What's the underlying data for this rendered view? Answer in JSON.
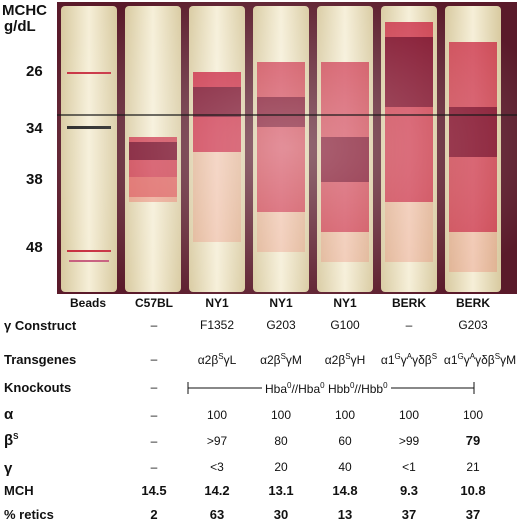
{
  "axis": {
    "title_line1": "MCHC",
    "title_line2": "g/dL",
    "ticks": [
      "26",
      "34",
      "38",
      "48"
    ]
  },
  "lanes": [
    "Beads",
    "C57BL",
    "NY1",
    "NY1",
    "NY1",
    "BERK",
    "BERK"
  ],
  "rows": {
    "gamma_construct": {
      "label": "γ Construct",
      "values": [
        "–",
        "F1352",
        "G203",
        "G100",
        "–",
        "G203"
      ]
    },
    "transgenes": {
      "label": "Transgenes",
      "values": [
        "–",
        "α2β^SγL",
        "α2β^SγM",
        "α2β^SγH",
        "α1^Gγ^Aγδβ^S",
        "α1^Gγ^Aγδβ^SγM"
      ]
    },
    "knockouts": {
      "label": "Knockouts",
      "values": [
        "–",
        "Hba^0//Hba^0 Hbb^0//Hbb^0"
      ]
    },
    "alpha": {
      "label": "α",
      "values": [
        "–",
        "100",
        "100",
        "100",
        "100",
        "100"
      ]
    },
    "beta_s": {
      "label": "β^S",
      "values": [
        "–",
        ">97",
        "80",
        "60",
        ">99",
        "79"
      ]
    },
    "gamma": {
      "label": "γ",
      "values": [
        "–",
        "<3",
        "20",
        "40",
        "<1",
        "21"
      ]
    },
    "mch": {
      "label": "MCH",
      "values": [
        "14.5",
        "14.2",
        "13.1",
        "14.8",
        "9.3",
        "10.8"
      ]
    },
    "retics": {
      "label": "% retics",
      "values": [
        "2",
        "63",
        "30",
        "13",
        "37",
        "37"
      ]
    }
  },
  "colors": {
    "frame": "#5a1a2a",
    "tube_bg": "#f2ead0",
    "blood_dark": "#7a0f2a",
    "blood_mid": "#c8203c",
    "blood_light": "#e88070",
    "ref_line": "#1a1a1a"
  }
}
